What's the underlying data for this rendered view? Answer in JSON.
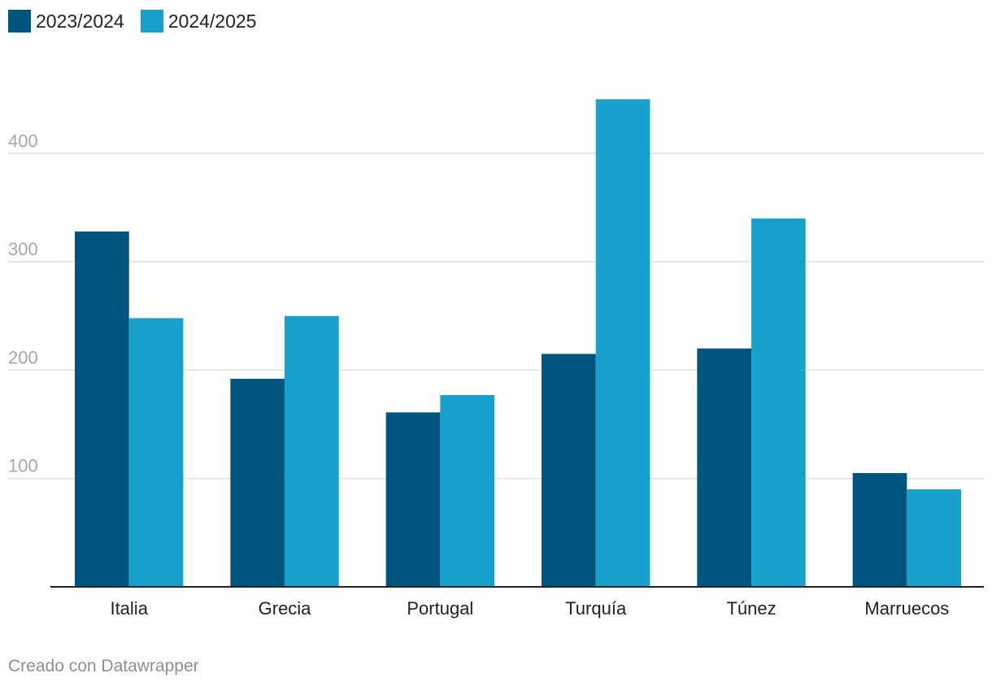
{
  "chart_data": {
    "type": "bar",
    "title": "",
    "xlabel": "",
    "ylabel": "",
    "categories": [
      "Italia",
      "Grecia",
      "Portugal",
      "Turquía",
      "Túnez",
      "Marruecos"
    ],
    "series": [
      {
        "name": "2023/2024",
        "color": "#00557e",
        "values": [
          328,
          192,
          161,
          215,
          220,
          105
        ]
      },
      {
        "name": "2024/2025",
        "color": "#18a1cd",
        "values": [
          248,
          250,
          177,
          450,
          340,
          90
        ]
      }
    ],
    "yticks": [
      100,
      200,
      300,
      400
    ],
    "ytick_labels": [
      "100",
      "200",
      "300",
      "400"
    ],
    "ylim": [
      0,
      450
    ],
    "grid": true,
    "legend": "top-left"
  },
  "footer": {
    "credit": "Creado con Datawrapper"
  }
}
